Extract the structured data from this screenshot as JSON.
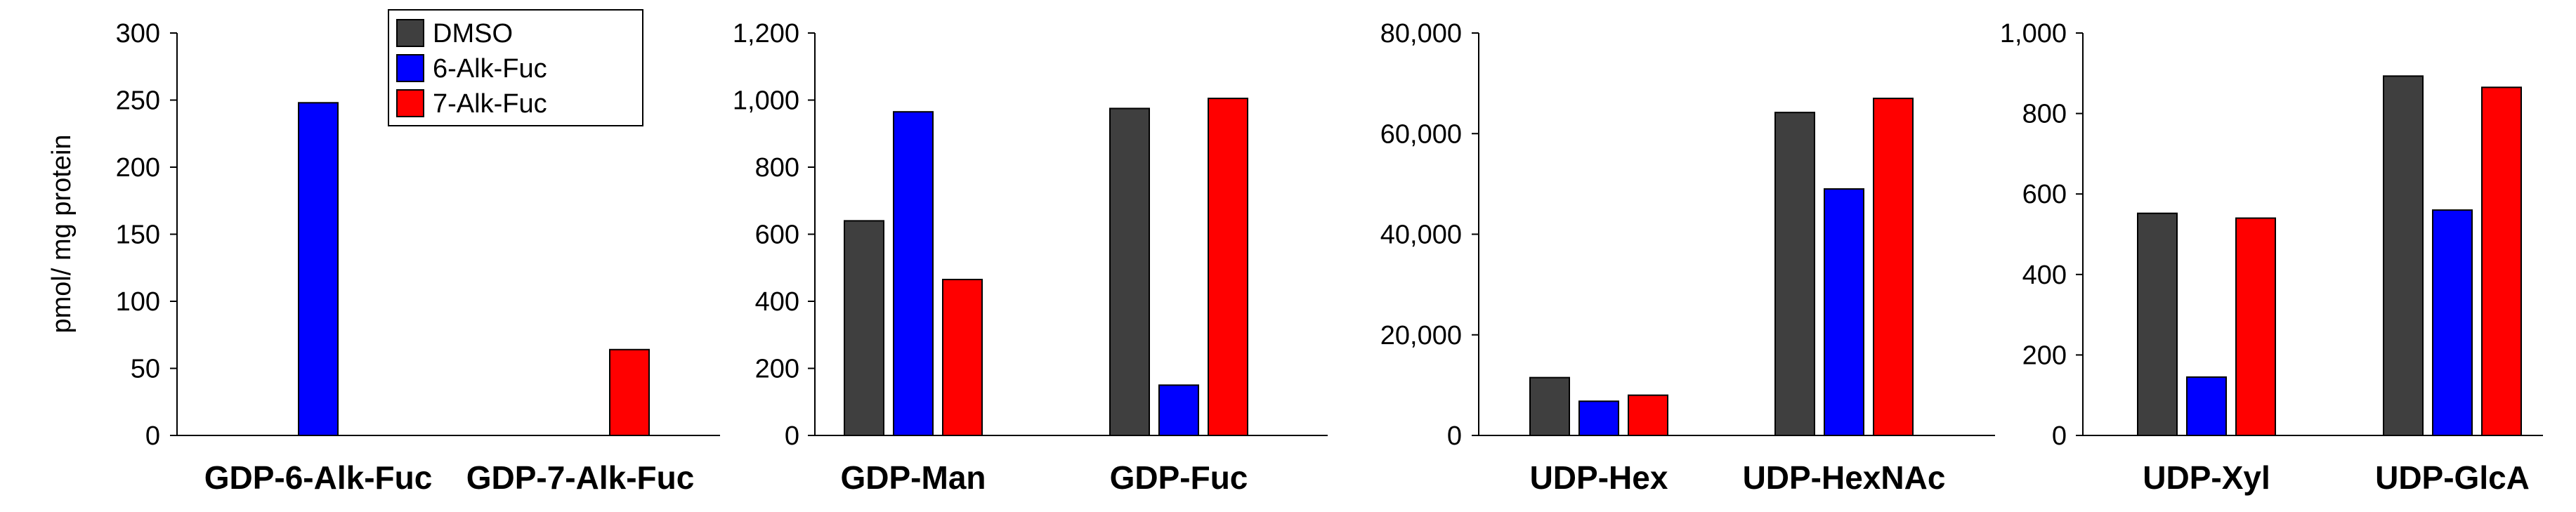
{
  "colors": {
    "DMSO": "#3f3f3f",
    "6-Alk-Fuc": "#0000ff",
    "7-Alk-Fuc": "#ff0000"
  },
  "legend": [
    "DMSO",
    "6-Alk-Fuc",
    "7-Alk-Fuc"
  ],
  "chart_data": [
    {
      "type": "bar",
      "ylabel": "pmol/ mg protein",
      "ylim": [
        0,
        300
      ],
      "yticks": [
        "0",
        "50",
        "100",
        "150",
        "200",
        "250",
        "300"
      ],
      "categories": [
        "GDP-6-Alk-Fuc",
        "GDP-7-Alk-Fuc"
      ],
      "series": [
        {
          "name": "DMSO",
          "values": [
            0,
            0
          ]
        },
        {
          "name": "6-Alk-Fuc",
          "values": [
            248,
            0
          ]
        },
        {
          "name": "7-Alk-Fuc",
          "values": [
            0,
            64
          ]
        }
      ],
      "grid": false,
      "legend": "top-right"
    },
    {
      "type": "bar",
      "ylim": [
        0,
        1200
      ],
      "yticks": [
        "0",
        "200",
        "400",
        "600",
        "800",
        "1,000",
        "1,200"
      ],
      "categories": [
        "GDP-Man",
        "GDP-Fuc"
      ],
      "series": [
        {
          "name": "DMSO",
          "values": [
            640,
            975
          ]
        },
        {
          "name": "6-Alk-Fuc",
          "values": [
            965,
            150
          ]
        },
        {
          "name": "7-Alk-Fuc",
          "values": [
            465,
            1005
          ]
        }
      ],
      "grid": false
    },
    {
      "type": "bar",
      "ylim": [
        0,
        80000
      ],
      "yticks": [
        "0",
        "20,000",
        "40,000",
        "60,000",
        "80,000"
      ],
      "categories": [
        "UDP-Hex",
        "UDP-HexNAc"
      ],
      "series": [
        {
          "name": "DMSO",
          "values": [
            11500,
            64200
          ]
        },
        {
          "name": "6-Alk-Fuc",
          "values": [
            6800,
            49000
          ]
        },
        {
          "name": "7-Alk-Fuc",
          "values": [
            8000,
            67000
          ]
        }
      ],
      "grid": false
    },
    {
      "type": "bar",
      "ylim": [
        0,
        1000
      ],
      "yticks": [
        "0",
        "200",
        "400",
        "600",
        "800",
        "1,000"
      ],
      "categories": [
        "UDP-Xyl",
        "UDP-GlcA"
      ],
      "series": [
        {
          "name": "DMSO",
          "values": [
            552,
            893
          ]
        },
        {
          "name": "6-Alk-Fuc",
          "values": [
            145,
            560
          ]
        },
        {
          "name": "7-Alk-Fuc",
          "values": [
            540,
            865
          ]
        }
      ],
      "grid": false
    }
  ]
}
